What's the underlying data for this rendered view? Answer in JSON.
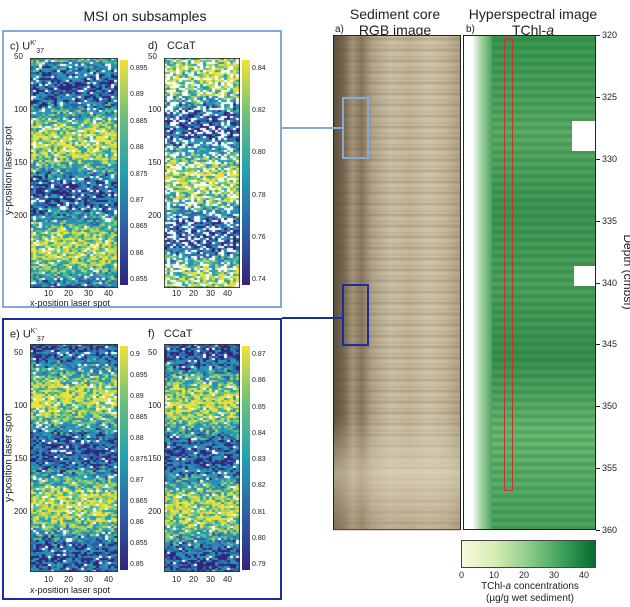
{
  "titles": {
    "msi": "MSI on subsamples",
    "core": "Sediment core",
    "core_sub": "RGB image",
    "hyper": "Hyperspectral image",
    "hyper_sub": "TChl-",
    "hyper_sub_italic": "a"
  },
  "panels": {
    "c": {
      "label": "c)",
      "var": "U",
      "sup": "K'",
      "sub": "37",
      "cb_ticks": [
        "0.895",
        "0.89",
        "0.885",
        "0.88",
        "0.875",
        "0.87",
        "0.865",
        "0.86",
        "0.855"
      ]
    },
    "d": {
      "label": "d)",
      "var": "CCaT",
      "cb_ticks": [
        "0.84",
        "0.82",
        "0.80",
        "0.78",
        "0.76",
        "0.74"
      ]
    },
    "e": {
      "label": "e)",
      "var": "U",
      "sup": "K'",
      "sub": "37",
      "cb_ticks": [
        "0.9",
        "0.895",
        "0.89",
        "0.885",
        "0.88",
        "0.875",
        "0.87",
        "0.865",
        "0.86",
        "0.855",
        "0.85"
      ]
    },
    "f": {
      "label": "f)",
      "var": "CCaT",
      "cb_ticks": [
        "0.87",
        "0.86",
        "0.85",
        "0.84",
        "0.83",
        "0.82",
        "0.81",
        "0.80",
        "0.79"
      ]
    },
    "a": {
      "label": "a)"
    },
    "b": {
      "label": "b)"
    }
  },
  "axes": {
    "msi_y_label": "y-position laser spot",
    "msi_x_label": "x-position laser spot",
    "msi_y_ticks_top": [
      "50",
      "100",
      "150",
      "200"
    ],
    "msi_y_ticks_bottom": [
      "50",
      "100",
      "150",
      "200"
    ],
    "msi_x_ticks": [
      "10",
      "20",
      "30",
      "40"
    ],
    "depth_label": "Depth (cmbsf)",
    "depth_ticks": [
      "320",
      "325",
      "330",
      "335",
      "340",
      "345",
      "350",
      "355",
      "360"
    ]
  },
  "colorbar": {
    "ticks": [
      "0",
      "10",
      "20",
      "30",
      "40"
    ],
    "label_line1": "TChl-",
    "label_italic": "a",
    "label_line1_end": " concentrations",
    "label_line2": "(µg/g wet sediment)"
  },
  "colors": {
    "light_blue": "#86a9d8",
    "dark_blue": "#1d2d9e",
    "red": "#c8342a"
  }
}
